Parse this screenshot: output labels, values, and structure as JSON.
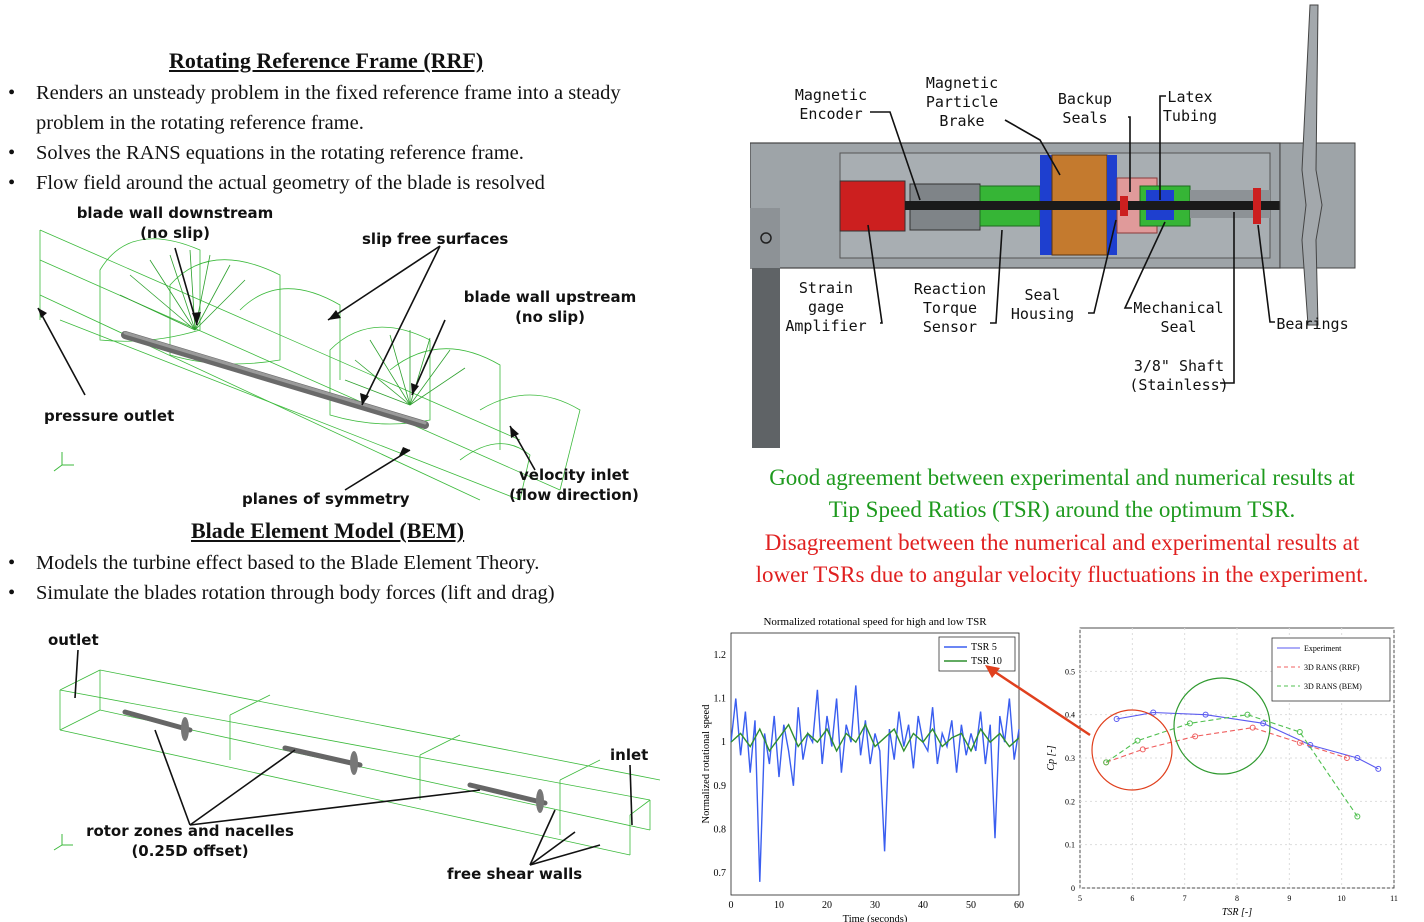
{
  "rrf": {
    "title": "Rotating Reference Frame (RRF)",
    "bullets": [
      "Renders an unsteady problem in the fixed reference frame into a steady problem in the rotating reference frame.",
      "Solves the RANS equations in the rotating reference frame.",
      "Flow field around the actual geometry of the blade is resolved"
    ],
    "bullet_symbol": "•",
    "labels": {
      "downstream": "blade wall downstream\n(no slip)",
      "slip": "slip free surfaces",
      "upstream": "blade wall upstream\n(no slip)",
      "outlet": "pressure outlet",
      "inlet": "velocity inlet\n(flow direction)",
      "symmetry": "planes of symmetry"
    }
  },
  "bem": {
    "title": "Blade Element Model (BEM)",
    "bullets": [
      "Models the turbine effect based to the Blade Element Theory.",
      "Simulate the blades rotation through body forces (lift and drag)"
    ],
    "labels": {
      "outlet": "outlet",
      "inlet": "inlet",
      "rotor": "rotor zones and nacelles\n(0.25D offset)",
      "shear": "free shear walls"
    }
  },
  "apparatus": {
    "labels": {
      "encoder": "Magnetic\nEncoder",
      "brake": "Magnetic\nParticle\nBrake",
      "backup": "Backup\nSeals",
      "latex": "Latex\nTubing",
      "strain": "Strain\ngage\nAmplifier",
      "reaction": "Reaction\nTorque\nSensor",
      "housing": "Seal\nHousing",
      "mech": "Mechanical\nSeal",
      "bearings": "Bearings",
      "shaft": "3/8\" Shaft\n(Stainless)"
    }
  },
  "results": {
    "good": "Good agreement between experimental and numerical results at\nTip Speed Ratios (TSR) around the optimum TSR.",
    "bad": "Disagreement between the numerical and experimental results at\nlower TSRs due to angular velocity fluctuations in the experiment.",
    "good_color": "#1e9a1e",
    "bad_color": "#e02020"
  },
  "chart_data": [
    {
      "type": "line",
      "title": "Normalized rotational speed for high and low TSR",
      "xlabel": "Time (seconds)",
      "ylabel": "Normalized rotational speed",
      "xlim": [
        0,
        60
      ],
      "ylim": [
        0.65,
        1.25
      ],
      "xticks": [
        0,
        10,
        20,
        30,
        40,
        50,
        60
      ],
      "yticks": [
        0.7,
        0.8,
        0.9,
        1,
        1.1,
        1.2
      ],
      "legend": "top-right",
      "series": [
        {
          "name": "TSR 5",
          "color": "#3a5ef0",
          "x": [
            0,
            1,
            2,
            3,
            4,
            5,
            6,
            7,
            8,
            9,
            10,
            11,
            12,
            13,
            14,
            15,
            16,
            17,
            18,
            19,
            20,
            21,
            22,
            23,
            24,
            25,
            26,
            27,
            28,
            29,
            30,
            31,
            32,
            33,
            34,
            35,
            36,
            37,
            38,
            39,
            40,
            41,
            42,
            43,
            44,
            45,
            46,
            47,
            48,
            49,
            50,
            51,
            52,
            53,
            54,
            55,
            56,
            57,
            58,
            59,
            60
          ],
          "values": [
            1.0,
            1.1,
            0.97,
            1.07,
            0.93,
            1.05,
            0.68,
            1.02,
            0.95,
            1.06,
            0.92,
            1.04,
            0.98,
            0.9,
            1.08,
            0.96,
            1.02,
            1.0,
            1.12,
            0.95,
            1.06,
            0.99,
            1.1,
            0.93,
            1.04,
            1.0,
            1.13,
            0.97,
            1.05,
            0.95,
            1.02,
            0.98,
            0.75,
            1.03,
            0.96,
            1.07,
            0.99,
            1.04,
            0.94,
            1.06,
            1.0,
            0.98,
            1.08,
            0.95,
            1.02,
            0.99,
            1.05,
            0.93,
            1.04,
            0.97,
            1.02,
            0.98,
            1.07,
            0.95,
            1.04,
            0.78,
            1.06,
            1.0,
            1.1,
            0.96,
            1.03
          ]
        },
        {
          "name": "TSR 10",
          "color": "#2f8f2f",
          "x": [
            0,
            2,
            4,
            6,
            8,
            10,
            12,
            14,
            16,
            18,
            20,
            22,
            24,
            26,
            28,
            30,
            32,
            34,
            36,
            38,
            40,
            42,
            44,
            46,
            48,
            50,
            52,
            54,
            56,
            58,
            60
          ],
          "values": [
            1.0,
            1.02,
            0.99,
            1.03,
            0.98,
            1.01,
            1.04,
            0.99,
            1.02,
            1.0,
            1.03,
            0.98,
            1.02,
            1.0,
            1.04,
            0.99,
            1.01,
            1.03,
            0.98,
            1.02,
            1.0,
            1.03,
            0.99,
            1.01,
            1.02,
            0.98,
            1.03,
            1.0,
            1.02,
            0.99,
            1.01
          ]
        }
      ]
    },
    {
      "type": "line",
      "title": "",
      "xlabel": "TSR [-]",
      "ylabel": "Cp [-]",
      "xlim": [
        5,
        11
      ],
      "ylim": [
        0,
        0.6
      ],
      "xticks": [
        5,
        6,
        7,
        8,
        9,
        10,
        11
      ],
      "yticks": [
        0,
        0.1,
        0.2,
        0.3,
        0.4,
        0.5
      ],
      "legend": "top-right",
      "series": [
        {
          "name": "Experiment",
          "color": "#5a5af0",
          "x": [
            5.7,
            6.4,
            7.4,
            8.5,
            9.4,
            10.3,
            10.7
          ],
          "values": [
            0.39,
            0.405,
            0.4,
            0.38,
            0.33,
            0.3,
            0.275
          ]
        },
        {
          "name": "3D RANS (RRF)",
          "color": "#f06060",
          "x": [
            5.5,
            6.2,
            7.2,
            8.3,
            9.2,
            10.1
          ],
          "values": [
            0.29,
            0.32,
            0.35,
            0.37,
            0.335,
            0.3
          ]
        },
        {
          "name": "3D RANS (BEM)",
          "color": "#50c050",
          "x": [
            5.5,
            6.1,
            7.1,
            8.2,
            9.2,
            10.3
          ],
          "values": [
            0.29,
            0.34,
            0.38,
            0.4,
            0.36,
            0.165
          ]
        }
      ]
    }
  ]
}
